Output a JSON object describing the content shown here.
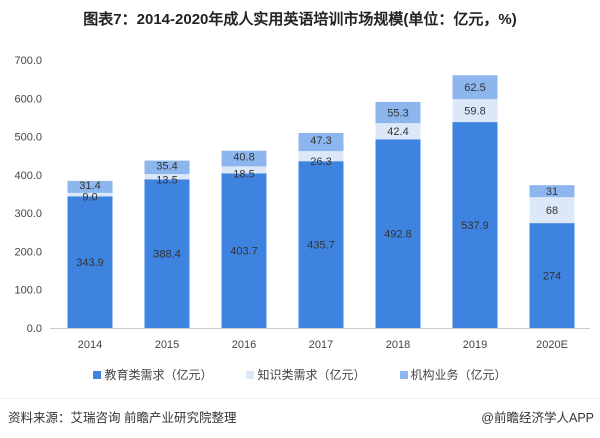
{
  "title": "图表7：2014-2020年成人实用英语培训市场规模(单位：亿元，%)",
  "chart_data": {
    "type": "bar",
    "stacked": true,
    "title": "图表7：2014-2020年成人实用英语培训市场规模(单位：亿元，%)",
    "categories": [
      "2014",
      "2015",
      "2016",
      "2017",
      "2018",
      "2019",
      "2020E"
    ],
    "series": [
      {
        "name": "教育类需求（亿元）",
        "color": "#3f83e0",
        "values": [
          343.9,
          388.4,
          403.7,
          435.7,
          492.8,
          537.9,
          274
        ],
        "labels": [
          "343.9",
          "388.4",
          "403.7",
          "435.7",
          "492.8",
          "537.9",
          "274"
        ]
      },
      {
        "name": "知识类需求（亿元）",
        "color": "#dce8f8",
        "values": [
          9.0,
          13.5,
          18.5,
          26.3,
          42.4,
          59.8,
          68
        ],
        "labels": [
          "9.0",
          "13.5",
          "18.5",
          "26.3",
          "42.4",
          "59.8",
          "68"
        ]
      },
      {
        "name": "机构业务（亿元）",
        "color": "#8db6ee",
        "values": [
          31.4,
          35.4,
          40.8,
          47.3,
          55.3,
          62.5,
          31
        ],
        "labels": [
          "31.4",
          "35.4",
          "40.8",
          "47.3",
          "55.3",
          "62.5",
          "31"
        ]
      }
    ],
    "yticks": [
      "0.0",
      "100.0",
      "200.0",
      "300.0",
      "400.0",
      "500.0",
      "600.0",
      "700.0"
    ],
    "ylim": [
      0,
      700
    ],
    "xlabel": "",
    "ylabel": "",
    "grid": false,
    "legend": "bottom"
  },
  "source": "资料来源：艾瑞咨询 前瞻产业研究院整理",
  "credit": "@前瞻经济学人APP"
}
